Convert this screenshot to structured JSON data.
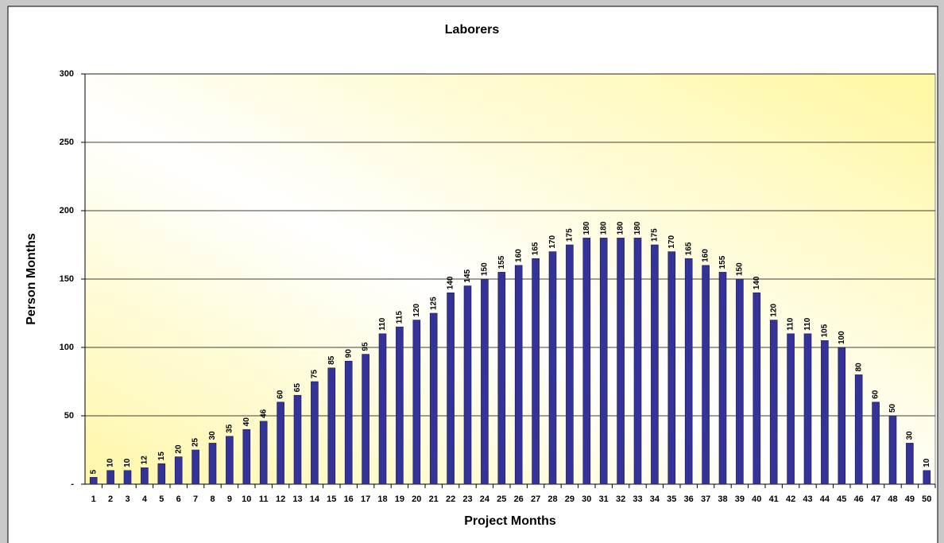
{
  "chart_data": {
    "type": "bar",
    "title": "Laborers",
    "x_label": "Project Months",
    "y_label": "Person Months",
    "categories": [
      "1",
      "2",
      "3",
      "4",
      "5",
      "6",
      "7",
      "8",
      "9",
      "10",
      "11",
      "12",
      "13",
      "14",
      "15",
      "16",
      "17",
      "18",
      "19",
      "20",
      "21",
      "22",
      "23",
      "24",
      "25",
      "26",
      "27",
      "28",
      "29",
      "30",
      "31",
      "32",
      "33",
      "34",
      "35",
      "36",
      "37",
      "38",
      "39",
      "40",
      "41",
      "42",
      "43",
      "44",
      "45",
      "46",
      "47",
      "48",
      "49",
      "50"
    ],
    "values": [
      5,
      10,
      10,
      12,
      15,
      20,
      25,
      30,
      35,
      40,
      46,
      60,
      65,
      75,
      85,
      90,
      95,
      110,
      115,
      120,
      125,
      140,
      145,
      150,
      155,
      160,
      165,
      170,
      175,
      180,
      180,
      180,
      180,
      175,
      170,
      165,
      160,
      155,
      150,
      140,
      120,
      110,
      110,
      105,
      100,
      80,
      60,
      50,
      30,
      10
    ],
    "color": "#333399",
    "ylim": [
      0,
      300
    ],
    "yticks": [
      {
        "value": 0,
        "label": "-"
      },
      50,
      100,
      150,
      200,
      250,
      300
    ],
    "grid": true
  }
}
